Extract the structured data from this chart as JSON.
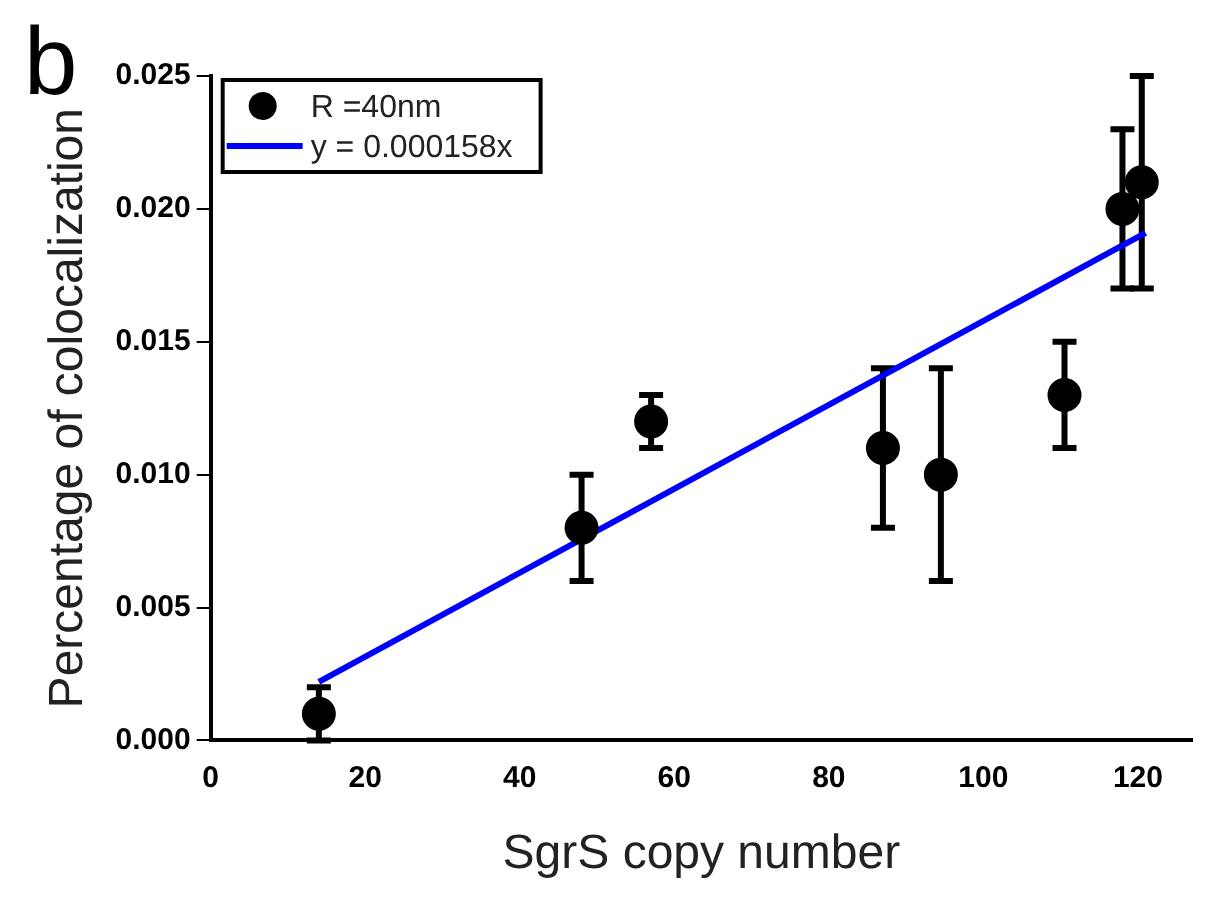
{
  "chart_data": {
    "type": "scatter",
    "xlabel": "SgrS copy number",
    "ylabel": "Percentage of colocalization",
    "annotations": [
      "b"
    ],
    "xlim": [
      0,
      127
    ],
    "xticks": [
      0,
      20,
      40,
      60,
      80,
      100,
      120
    ],
    "ylim": [
      0,
      0.025
    ],
    "yticks": [
      {
        "value": 0,
        "label": "0.000"
      },
      {
        "value": 0.005,
        "label": "0.005"
      },
      {
        "value": 0.01,
        "label": "0.010"
      },
      {
        "value": 0.015,
        "label": "0.015"
      },
      {
        "value": 0.02,
        "label": "0.020"
      },
      {
        "value": 0.025,
        "label": "0.025"
      }
    ],
    "legend": "top left",
    "grid": false,
    "series": [
      {
        "name": "R =40nm",
        "marker": "circle",
        "color": "#000000",
        "x": [
          14,
          48,
          57,
          87,
          94.5,
          110.5,
          118,
          120.5
        ],
        "values": [
          0.001,
          0.008,
          0.012,
          0.011,
          0.01,
          0.013,
          0.02,
          0.021
        ],
        "errors": [
          [
            0,
            0.002
          ],
          [
            0.006,
            0.01
          ],
          [
            0.011,
            0.013
          ],
          [
            0.008,
            0.014
          ],
          [
            0.006,
            0.014
          ],
          [
            0.011,
            0.015
          ],
          [
            0.017,
            0.023
          ],
          [
            0.017,
            0.025
          ]
        ]
      },
      {
        "name": "y = 0.000158x",
        "type": "line",
        "marker": "none",
        "color": "#0000ff",
        "x": [
          14,
          121
        ],
        "values": [
          0.0022,
          0.0191
        ]
      }
    ]
  }
}
